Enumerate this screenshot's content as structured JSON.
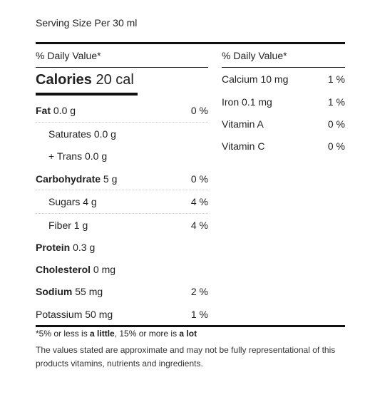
{
  "serving_size": "Serving Size Per 30 ml",
  "daily_value_header": "% Daily Value*",
  "calories": {
    "label": "Calories",
    "value": "20 cal"
  },
  "left_nutrients": [
    {
      "name": "Fat",
      "amount": "0.0 g",
      "pct": "0 %",
      "bold": true
    },
    {
      "name": "Saturates",
      "amount": "0.0 g",
      "pct": "",
      "bold": false
    },
    {
      "name": "+ Trans",
      "amount": "0.0 g",
      "pct": "",
      "bold": false
    },
    {
      "name": "Carbohydrate",
      "amount": "5 g",
      "pct": "0 %",
      "bold": true
    },
    {
      "name": "Sugars",
      "amount": "4 g",
      "pct": "4 %",
      "bold": false
    },
    {
      "name": "Fiber",
      "amount": "1 g",
      "pct": "4 %",
      "bold": false
    },
    {
      "name": "Protein",
      "amount": "0.3 g",
      "pct": "",
      "bold": true
    },
    {
      "name": "Cholesterol",
      "amount": "0 mg",
      "pct": "",
      "bold": true
    },
    {
      "name": "Sodium",
      "amount": "55 mg",
      "pct": "2 %",
      "bold": true
    },
    {
      "name": "Potassium",
      "amount": "50 mg",
      "pct": "1 %",
      "bold": false
    }
  ],
  "right_nutrients": [
    {
      "name": "Calcium",
      "amount": "10 mg",
      "pct": "1 %"
    },
    {
      "name": "Iron",
      "amount": "0.1 mg",
      "pct": "1 %"
    },
    {
      "name": "Vitamin A",
      "amount": "",
      "pct": "0 %"
    },
    {
      "name": "Vitamin C",
      "amount": "",
      "pct": "0 %"
    }
  ],
  "footnote": {
    "p1": "*5% or less is ",
    "b1": "a little",
    "p2": ", 15% or more is ",
    "b2": "a lot",
    "disclaimer": "The values stated are approximate and may not be fully representational of this products vitamins, nutrients and ingredients."
  }
}
